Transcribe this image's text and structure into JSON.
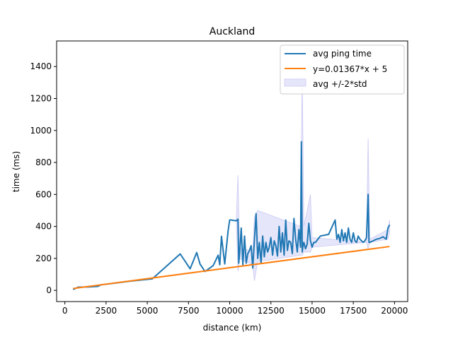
{
  "chart_data": {
    "type": "line",
    "title": "Auckland",
    "xlabel": "distance (km)",
    "ylabel": "time (ms)",
    "xlim": [
      -500,
      20800
    ],
    "ylim": [
      -70,
      1560
    ],
    "xticks": [
      0,
      2500,
      5000,
      7500,
      10000,
      12500,
      15000,
      17500,
      20000
    ],
    "yticks": [
      0,
      200,
      400,
      600,
      800,
      1000,
      1200,
      1400
    ],
    "grid": false,
    "legend_position": "top-right",
    "colors": {
      "avg": "#1f77b4",
      "fit": "#ff7f0e",
      "band_fill": "#e6e6fa",
      "band_edge": "#c9c9f5"
    },
    "series": [
      {
        "name": "avg ping time",
        "role": "avg",
        "x": [
          500,
          800,
          1500,
          2000,
          2200,
          3000,
          4000,
          5300,
          7000,
          7600,
          8000,
          8200,
          8500,
          9000,
          9300,
          9400,
          9500,
          9700,
          9900,
          10000,
          10100,
          10400,
          10500,
          10550,
          10600,
          10700,
          10800,
          10900,
          11000,
          11100,
          11200,
          11300,
          11400,
          11500,
          11600,
          11700,
          11800,
          11900,
          12000,
          12100,
          12200,
          12300,
          12400,
          12500,
          12600,
          12700,
          12800,
          12900,
          13000,
          13100,
          13200,
          13300,
          13400,
          13500,
          13600,
          13700,
          13800,
          13900,
          14000,
          14100,
          14200,
          14300,
          14350,
          14400,
          14450,
          14500,
          14600,
          14700,
          14800,
          14900,
          15000,
          15100,
          15200,
          15500,
          16000,
          16400,
          16500,
          16600,
          16700,
          16800,
          16900,
          17000,
          17100,
          17200,
          17300,
          17400,
          17500,
          17600,
          17700,
          17800,
          17900,
          18000,
          18100,
          18200,
          18300,
          18400,
          18450,
          18500,
          18700,
          18900,
          19100,
          19300,
          19500,
          19600,
          19700
        ],
        "y": [
          5,
          20,
          22,
          25,
          35,
          45,
          58,
          72,
          228,
          135,
          237,
          165,
          118,
          155,
          220,
          160,
          338,
          165,
          370,
          440,
          440,
          435,
          445,
          170,
          230,
          390,
          160,
          340,
          170,
          230,
          250,
          280,
          140,
          310,
          480,
          200,
          300,
          170,
          340,
          210,
          300,
          240,
          270,
          330,
          220,
          310,
          280,
          215,
          400,
          240,
          360,
          220,
          440,
          250,
          310,
          300,
          230,
          450,
          320,
          240,
          380,
          270,
          930,
          240,
          280,
          300,
          260,
          290,
          420,
          310,
          270,
          300,
          300,
          340,
          350,
          440,
          320,
          350,
          300,
          380,
          310,
          360,
          300,
          390,
          320,
          300,
          360,
          310,
          300,
          340,
          320,
          310,
          300,
          310,
          330,
          600,
          300,
          300,
          310,
          320,
          325,
          335,
          320,
          390,
          410
        ]
      },
      {
        "name": "y=0.01367*x + 5",
        "role": "fit",
        "slope": 0.01367,
        "intercept": 5,
        "x": [
          500,
          19700
        ]
      },
      {
        "name": "avg +/-2*std",
        "role": "band",
        "x": [
          10400,
          10500,
          10600,
          11400,
          11500,
          11700,
          14300,
          14400,
          14500,
          14900,
          15000,
          18300,
          18400,
          18500,
          19600,
          19700
        ],
        "upper": [
          440,
          720,
          260,
          250,
          460,
          500,
          400,
          1340,
          400,
          600,
          330,
          300,
          950,
          320,
          380,
          440
        ],
        "lower": [
          440,
          120,
          200,
          160,
          60,
          180,
          220,
          220,
          240,
          240,
          270,
          300,
          260,
          300,
          320,
          360
        ]
      }
    ]
  }
}
